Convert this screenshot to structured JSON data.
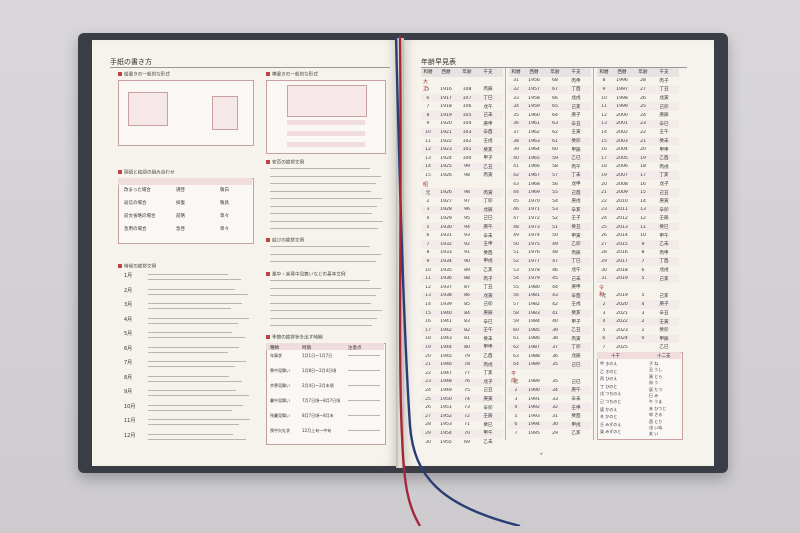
{
  "left_page": {
    "title": "手紙の書き方",
    "section1": "縦書きの一般的な形式",
    "section2": "頭語と結語の組み合わせ",
    "section3": "時候の挨拶文例",
    "months": [
      "1月",
      "2月",
      "3月",
      "4月",
      "5月",
      "6月",
      "7月",
      "8月",
      "9月",
      "10月",
      "11月",
      "12月"
    ],
    "section4": "横書きの一般的な形式",
    "section5": "安否の挨拶文例",
    "section6": "結びの挨拶文例",
    "section7": "業中・余寒中見舞いなどの基本文例",
    "section8": "季節の挨拶状を出す時期",
    "greet_table": {
      "rows": [
        [
          "改まった場合",
          "謹啓",
          "敬白"
        ],
        [
          "返信の場合",
          "拝復",
          "敬具"
        ],
        [
          "前文省略の場合",
          "前略",
          "草々"
        ],
        [
          "急用の場合",
          "急啓",
          "草々"
        ]
      ]
    },
    "season_table": {
      "header": [
        "種類",
        "時期",
        "注意点"
      ],
      "rows": [
        [
          "年賀状",
          "1月1日〜1月7日"
        ],
        [
          "寒中見舞い",
          "1月8日〜2月4日頃"
        ],
        [
          "余寒見舞い",
          "2月4日〜2月末頃"
        ],
        [
          "暑中見舞い",
          "7月7日頃〜8月7日頃"
        ],
        [
          "残暑見舞い",
          "8月7日頃〜8月末"
        ],
        [
          "喪中欠礼状",
          "12月上旬〜中旬"
        ]
      ]
    }
  },
  "right_page": {
    "title": "年齢早見表",
    "header": [
      "和暦",
      "西暦",
      "年齢",
      "干支"
    ],
    "eras": {
      "taisho": "大正",
      "showa": "昭和",
      "heisei": "平成",
      "reiwa": "令和"
    },
    "col1": [
      [
        "5",
        "1916",
        "108",
        "丙辰"
      ],
      [
        "6",
        "1917",
        "107",
        "丁巳"
      ],
      [
        "7",
        "1918",
        "106",
        "戊午"
      ],
      [
        "8",
        "1919",
        "105",
        "己未"
      ],
      [
        "9",
        "1920",
        "104",
        "庚申"
      ],
      [
        "10",
        "1921",
        "103",
        "辛酉"
      ],
      [
        "11",
        "1922",
        "102",
        "壬戌"
      ],
      [
        "12",
        "1923",
        "101",
        "癸亥"
      ],
      [
        "13",
        "1924",
        "100",
        "甲子"
      ],
      [
        "14",
        "1925",
        "99",
        "乙丑"
      ],
      [
        "15",
        "1926",
        "98",
        "丙寅"
      ],
      [
        "元",
        "1926",
        "98",
        "丙寅"
      ],
      [
        "2",
        "1927",
        "97",
        "丁卯"
      ],
      [
        "3",
        "1928",
        "96",
        "戊辰"
      ],
      [
        "4",
        "1929",
        "95",
        "己巳"
      ],
      [
        "5",
        "1930",
        "94",
        "庚午"
      ],
      [
        "6",
        "1931",
        "93",
        "辛未"
      ],
      [
        "7",
        "1932",
        "92",
        "壬申"
      ],
      [
        "8",
        "1933",
        "91",
        "癸酉"
      ],
      [
        "9",
        "1934",
        "90",
        "甲戌"
      ],
      [
        "10",
        "1935",
        "89",
        "乙亥"
      ],
      [
        "11",
        "1936",
        "88",
        "丙子"
      ],
      [
        "12",
        "1937",
        "87",
        "丁丑"
      ],
      [
        "13",
        "1938",
        "86",
        "戊寅"
      ],
      [
        "14",
        "1939",
        "85",
        "己卯"
      ],
      [
        "15",
        "1940",
        "84",
        "庚辰"
      ],
      [
        "16",
        "1941",
        "83",
        "辛巳"
      ],
      [
        "17",
        "1942",
        "82",
        "壬午"
      ],
      [
        "18",
        "1943",
        "81",
        "癸未"
      ],
      [
        "19",
        "1944",
        "80",
        "甲申"
      ],
      [
        "20",
        "1945",
        "79",
        "乙酉"
      ],
      [
        "21",
        "1946",
        "78",
        "丙戌"
      ],
      [
        "22",
        "1947",
        "77",
        "丁亥"
      ],
      [
        "23",
        "1948",
        "76",
        "戊子"
      ],
      [
        "24",
        "1949",
        "75",
        "己丑"
      ],
      [
        "25",
        "1950",
        "74",
        "庚寅"
      ],
      [
        "26",
        "1951",
        "73",
        "辛卯"
      ],
      [
        "27",
        "1952",
        "72",
        "壬辰"
      ],
      [
        "28",
        "1953",
        "71",
        "癸巳"
      ],
      [
        "29",
        "1954",
        "70",
        "甲午"
      ],
      [
        "30",
        "1955",
        "69",
        "乙未"
      ]
    ],
    "col2": [
      [
        "31",
        "1956",
        "68",
        "丙申"
      ],
      [
        "32",
        "1957",
        "67",
        "丁酉"
      ],
      [
        "33",
        "1958",
        "66",
        "戊戌"
      ],
      [
        "34",
        "1959",
        "65",
        "己亥"
      ],
      [
        "35",
        "1960",
        "64",
        "庚子"
      ],
      [
        "36",
        "1961",
        "63",
        "辛丑"
      ],
      [
        "37",
        "1962",
        "62",
        "壬寅"
      ],
      [
        "38",
        "1963",
        "61",
        "癸卯"
      ],
      [
        "39",
        "1964",
        "60",
        "甲辰"
      ],
      [
        "40",
        "1965",
        "59",
        "乙巳"
      ],
      [
        "41",
        "1966",
        "58",
        "丙午"
      ],
      [
        "42",
        "1967",
        "57",
        "丁未"
      ],
      [
        "43",
        "1968",
        "56",
        "戊申"
      ],
      [
        "44",
        "1969",
        "55",
        "己酉"
      ],
      [
        "45",
        "1970",
        "54",
        "庚戌"
      ],
      [
        "46",
        "1971",
        "53",
        "辛亥"
      ],
      [
        "47",
        "1972",
        "52",
        "壬子"
      ],
      [
        "48",
        "1973",
        "51",
        "癸丑"
      ],
      [
        "49",
        "1974",
        "50",
        "甲寅"
      ],
      [
        "50",
        "1975",
        "49",
        "乙卯"
      ],
      [
        "51",
        "1976",
        "48",
        "丙辰"
      ],
      [
        "52",
        "1977",
        "47",
        "丁巳"
      ],
      [
        "53",
        "1978",
        "46",
        "戊午"
      ],
      [
        "54",
        "1979",
        "45",
        "己未"
      ],
      [
        "55",
        "1980",
        "44",
        "庚申"
      ],
      [
        "56",
        "1981",
        "43",
        "辛酉"
      ],
      [
        "57",
        "1982",
        "42",
        "壬戌"
      ],
      [
        "58",
        "1983",
        "41",
        "癸亥"
      ],
      [
        "59",
        "1984",
        "40",
        "甲子"
      ],
      [
        "60",
        "1985",
        "39",
        "乙丑"
      ],
      [
        "61",
        "1986",
        "38",
        "丙寅"
      ],
      [
        "62",
        "1987",
        "37",
        "丁卯"
      ],
      [
        "63",
        "1988",
        "36",
        "戊辰"
      ],
      [
        "64",
        "1989",
        "35",
        "己巳"
      ],
      [
        "元",
        "1989",
        "35",
        "己巳"
      ],
      [
        "2",
        "1990",
        "34",
        "庚午"
      ],
      [
        "3",
        "1991",
        "33",
        "辛未"
      ],
      [
        "4",
        "1992",
        "32",
        "壬申"
      ],
      [
        "5",
        "1993",
        "31",
        "癸酉"
      ],
      [
        "6",
        "1994",
        "30",
        "甲戌"
      ],
      [
        "7",
        "1995",
        "29",
        "乙亥"
      ]
    ],
    "col3": [
      [
        "8",
        "1996",
        "28",
        "丙子"
      ],
      [
        "9",
        "1997",
        "27",
        "丁丑"
      ],
      [
        "10",
        "1998",
        "26",
        "戊寅"
      ],
      [
        "11",
        "1999",
        "25",
        "己卯"
      ],
      [
        "12",
        "2000",
        "24",
        "庚辰"
      ],
      [
        "13",
        "2001",
        "23",
        "辛巳"
      ],
      [
        "14",
        "2002",
        "22",
        "壬午"
      ],
      [
        "15",
        "2003",
        "21",
        "癸未"
      ],
      [
        "16",
        "2004",
        "20",
        "甲申"
      ],
      [
        "17",
        "2005",
        "19",
        "乙酉"
      ],
      [
        "18",
        "2006",
        "18",
        "丙戌"
      ],
      [
        "19",
        "2007",
        "17",
        "丁亥"
      ],
      [
        "20",
        "2008",
        "16",
        "戊子"
      ],
      [
        "21",
        "2009",
        "15",
        "己丑"
      ],
      [
        "22",
        "2010",
        "14",
        "庚寅"
      ],
      [
        "23",
        "2011",
        "13",
        "辛卯"
      ],
      [
        "24",
        "2012",
        "12",
        "壬辰"
      ],
      [
        "25",
        "2013",
        "11",
        "癸巳"
      ],
      [
        "26",
        "2014",
        "10",
        "甲午"
      ],
      [
        "27",
        "2015",
        "9",
        "乙未"
      ],
      [
        "28",
        "2016",
        "8",
        "丙申"
      ],
      [
        "29",
        "2017",
        "7",
        "丁酉"
      ],
      [
        "30",
        "2018",
        "6",
        "戊戌"
      ],
      [
        "31",
        "2019",
        "5",
        "己亥"
      ],
      [
        "元",
        "2019",
        "5",
        "己亥"
      ],
      [
        "2",
        "2020",
        "4",
        "庚子"
      ],
      [
        "3",
        "2021",
        "3",
        "辛丑"
      ],
      [
        "4",
        "2022",
        "2",
        "壬寅"
      ],
      [
        "5",
        "2023",
        "1",
        "癸卯"
      ],
      [
        "6",
        "2024",
        "0",
        "甲辰"
      ],
      [
        "7",
        "2025",
        "",
        "乙巳"
      ]
    ],
    "jikkan_title": "十干",
    "junishi_title": "十二支",
    "jikkan": [
      "甲 きのえ",
      "乙 きのと",
      "丙 ひのえ",
      "丁 ひのと",
      "戊 つちのえ",
      "己 つちのと",
      "庚 かのえ",
      "辛 かのと",
      "壬 みずのえ",
      "癸 みずのと"
    ],
    "junishi": [
      "子 ね",
      "丑 うし",
      "寅 とら",
      "卯 う",
      "辰 たつ",
      "巳 み",
      "午 うま",
      "未 ひつじ",
      "申 さる",
      "酉 とり",
      "戌 いぬ",
      "亥 い"
    ]
  },
  "colors": {
    "era_red": "#b03030",
    "ribbon_red": "#a3283a",
    "ribbon_blue": "#2a3c74"
  }
}
